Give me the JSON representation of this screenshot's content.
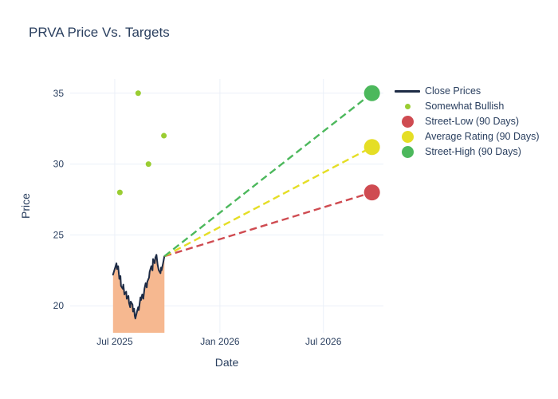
{
  "title": "PRVA Price Vs. Targets",
  "colors": {
    "text": "#2a3f5f",
    "grid": "#ebf0f8",
    "close_line": "#1d2b45",
    "close_fill": "#f6b890",
    "bullish": "#9acd32",
    "street_low": "#cf4b51",
    "average_rating": "#e5de25",
    "street_high": "#4cb85c",
    "background": "#ffffff"
  },
  "legend": {
    "items": [
      {
        "label": "Close Prices",
        "type": "line",
        "color": "#1d2b45"
      },
      {
        "label": "Somewhat Bullish",
        "type": "dot-small",
        "color": "#9acd32"
      },
      {
        "label": "Street-Low (90 Days)",
        "type": "dot-large",
        "color": "#cf4b51"
      },
      {
        "label": "Average Rating (90 Days)",
        "type": "dot-large",
        "color": "#e5de25"
      },
      {
        "label": "Street-High (90 Days)",
        "type": "dot-large",
        "color": "#4cb85c"
      }
    ]
  },
  "chart_data": {
    "type": "line",
    "title": "PRVA Price Vs. Targets",
    "xlabel": "Date",
    "ylabel": "Price",
    "x_unit": "days since 2025-07-01",
    "xlim": [
      -78,
      470
    ],
    "ylim": [
      18.1,
      36.0
    ],
    "x_ticks": [
      {
        "value": 0,
        "label": "Jul 2025"
      },
      {
        "value": 184,
        "label": "Jan 2026"
      },
      {
        "value": 365,
        "label": "Jul 2026"
      }
    ],
    "y_ticks": [
      20,
      25,
      30,
      35
    ],
    "grid": true,
    "legend_position": "right",
    "series": [
      {
        "name": "Close Prices",
        "type": "area-line",
        "color": "#1d2b45",
        "fill": "#f6b890",
        "points": [
          [
            -3,
            22.2
          ],
          [
            0,
            22.6
          ],
          [
            3,
            23.0
          ],
          [
            4,
            22.6
          ],
          [
            6,
            22.8
          ],
          [
            8,
            21.9
          ],
          [
            10,
            22.1
          ],
          [
            11,
            21.4
          ],
          [
            14,
            21.2
          ],
          [
            15,
            21.5
          ],
          [
            17,
            20.8
          ],
          [
            20,
            21.0
          ],
          [
            21,
            20.5
          ],
          [
            24,
            20.7
          ],
          [
            25,
            20.2
          ],
          [
            27,
            19.9
          ],
          [
            28,
            20.3
          ],
          [
            31,
            20.1
          ],
          [
            32,
            19.6
          ],
          [
            34,
            19.8
          ],
          [
            35,
            19.3
          ],
          [
            36,
            19.1
          ],
          [
            39,
            19.6
          ],
          [
            41,
            19.9
          ],
          [
            42,
            19.7
          ],
          [
            45,
            20.6
          ],
          [
            46,
            20.4
          ],
          [
            48,
            20.8
          ],
          [
            50,
            20.5
          ],
          [
            52,
            21.2
          ],
          [
            54,
            21.6
          ],
          [
            56,
            21.3
          ],
          [
            57,
            21.7
          ],
          [
            60,
            22.0
          ],
          [
            61,
            22.4
          ],
          [
            64,
            22.8
          ],
          [
            66,
            22.5
          ],
          [
            67,
            23.3
          ],
          [
            70,
            23.0
          ],
          [
            71,
            23.4
          ],
          [
            73,
            23.6
          ],
          [
            75,
            22.9
          ],
          [
            77,
            22.5
          ],
          [
            80,
            22.3
          ],
          [
            81,
            22.7
          ],
          [
            82,
            22.5
          ],
          [
            85,
            23.1
          ],
          [
            86,
            23.3
          ],
          [
            87,
            23.5
          ]
        ]
      },
      {
        "name": "Somewhat Bullish",
        "type": "scatter",
        "color": "#9acd32",
        "marker_radius": 3.5,
        "points": [
          [
            9,
            28
          ],
          [
            41,
            35
          ],
          [
            59,
            30
          ],
          [
            86,
            32
          ]
        ]
      },
      {
        "name": "Street-Low (90 Days)",
        "type": "target",
        "color": "#cf4b51",
        "dash": true,
        "marker_radius": 10,
        "from": [
          87,
          23.5
        ],
        "to": [
          450,
          28
        ]
      },
      {
        "name": "Average Rating (90 Days)",
        "type": "target",
        "color": "#e5de25",
        "dash": true,
        "marker_radius": 10,
        "from": [
          87,
          23.5
        ],
        "to": [
          450,
          31.2
        ]
      },
      {
        "name": "Street-High (90 Days)",
        "type": "target",
        "color": "#4cb85c",
        "dash": true,
        "marker_radius": 10,
        "from": [
          87,
          23.5
        ],
        "to": [
          450,
          35
        ]
      }
    ]
  }
}
